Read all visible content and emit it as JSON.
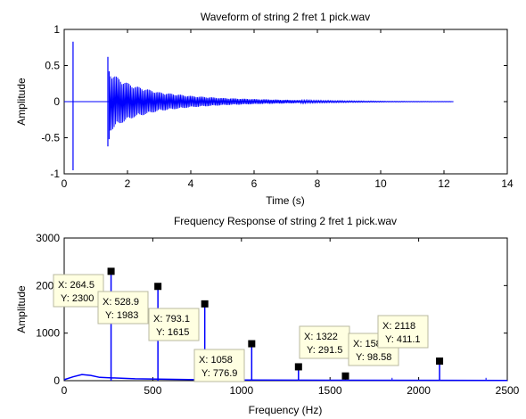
{
  "chart_data": [
    {
      "type": "line",
      "title": "Waveform of string 2 fret 1 pick.wav",
      "xlabel": "Time (s)",
      "ylabel": "Amplitude",
      "xlim": [
        0,
        14
      ],
      "ylim": [
        -1,
        1
      ],
      "xticks": [
        0,
        2,
        4,
        6,
        8,
        10,
        12,
        14
      ],
      "yticks": [
        -1,
        -0.5,
        0,
        0.5,
        1
      ],
      "grid": false,
      "line_color": "#0000ff",
      "events": [
        {
          "t": 0.28,
          "max": 0.83,
          "min": -0.95
        },
        {
          "t": 1.38,
          "max": 0.62,
          "min": -0.62
        },
        {
          "t": 1.42,
          "max": 0.42,
          "min": -0.52
        }
      ],
      "envelope": [
        {
          "t": 1.42,
          "a": 0.42
        },
        {
          "t": 1.8,
          "a": 0.3
        },
        {
          "t": 2.2,
          "a": 0.22
        },
        {
          "t": 3.0,
          "a": 0.13
        },
        {
          "t": 4.0,
          "a": 0.08
        },
        {
          "t": 5.0,
          "a": 0.05
        },
        {
          "t": 6.0,
          "a": 0.035
        },
        {
          "t": 7.0,
          "a": 0.025
        },
        {
          "t": 8.0,
          "a": 0.015
        },
        {
          "t": 9.0,
          "a": 0.01
        },
        {
          "t": 10.0,
          "a": 0.006
        },
        {
          "t": 11.0,
          "a": 0.004
        },
        {
          "t": 12.3,
          "a": 0.002
        }
      ],
      "signal_end": 12.3
    },
    {
      "type": "line",
      "title": "Frequency Response of string 2 fret 1 pick.wav",
      "xlabel": "Frequency (Hz)",
      "ylabel": "Amplitude",
      "xlim": [
        0,
        2500
      ],
      "ylim": [
        0,
        3000
      ],
      "xticks": [
        0,
        500,
        1000,
        1500,
        2000,
        2500
      ],
      "yticks": [
        0,
        1000,
        2000,
        3000
      ],
      "grid": false,
      "line_color": "#0000ff",
      "peaks": [
        {
          "x": 264.5,
          "y": 2300
        },
        {
          "x": 528.9,
          "y": 1983
        },
        {
          "x": 793.1,
          "y": 1615
        },
        {
          "x": 1058,
          "y": 776.9
        },
        {
          "x": 1322,
          "y": 291.5
        },
        {
          "x": 1587,
          "y": 98.58
        },
        {
          "x": 2118,
          "y": 411.1
        }
      ],
      "baseline": [
        {
          "x": 0,
          "y": 20
        },
        {
          "x": 50,
          "y": 80
        },
        {
          "x": 100,
          "y": 130
        },
        {
          "x": 150,
          "y": 110
        },
        {
          "x": 200,
          "y": 70
        },
        {
          "x": 400,
          "y": 40
        },
        {
          "x": 700,
          "y": 25
        },
        {
          "x": 1000,
          "y": 15
        },
        {
          "x": 1500,
          "y": 10
        },
        {
          "x": 2500,
          "y": 5
        }
      ],
      "datatips": [
        {
          "x_label": "X: 264.5",
          "y_label": "Y: 2300"
        },
        {
          "x_label": "X: 528.9",
          "y_label": "Y: 1983"
        },
        {
          "x_label": "X: 793.1",
          "y_label": "Y: 1615"
        },
        {
          "x_label": "X: 1058",
          "y_label": "Y: 776.9"
        },
        {
          "x_label": "X: 1322",
          "y_label": "Y: 291.5"
        },
        {
          "x_label": "X: 1587",
          "y_label": "Y: 98.58"
        },
        {
          "x_label": "X: 2118",
          "y_label": "Y: 411.1"
        }
      ]
    }
  ]
}
